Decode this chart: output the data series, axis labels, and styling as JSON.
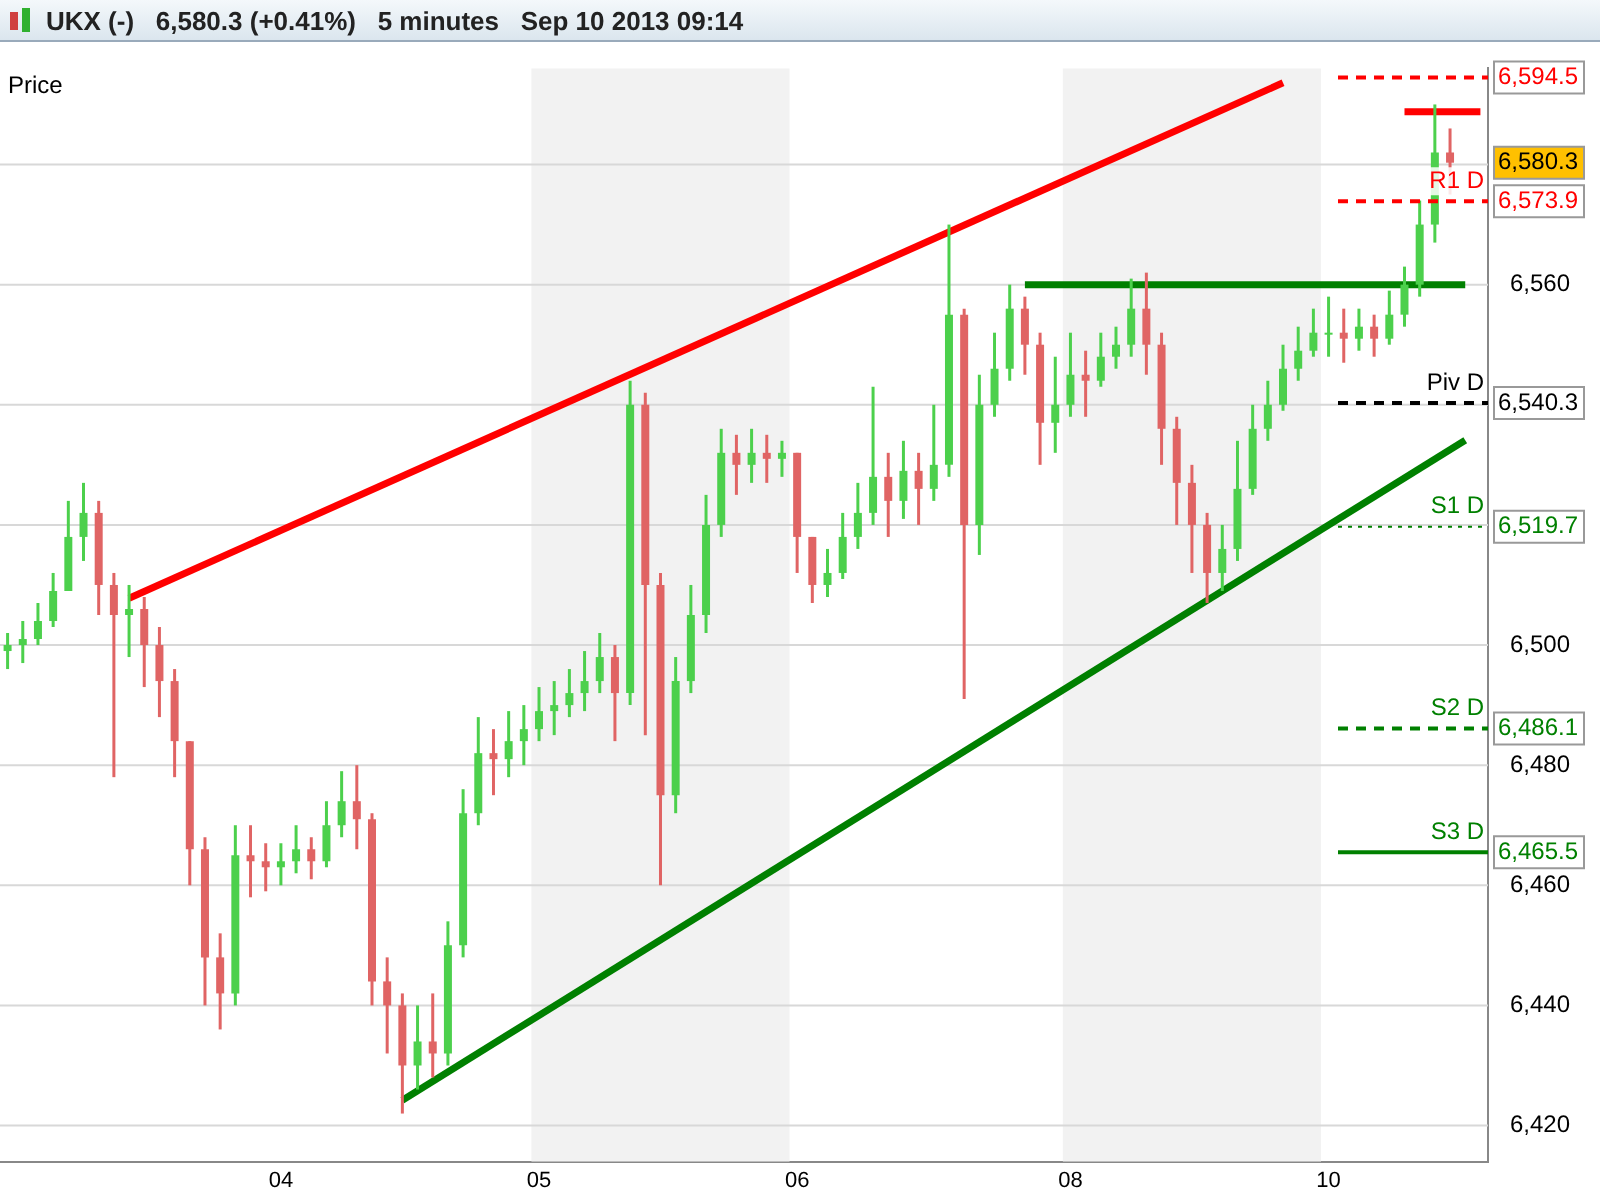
{
  "chart_data": {
    "type": "candlestick",
    "title": "UKX (-)   6,580.3 (+0.41%)   5 minutes   Sep 10 2013 09:14",
    "ylabel": "Price",
    "categories": [
      null,
      null,
      null,
      null,
      null,
      null,
      null,
      null,
      null,
      null,
      null,
      null,
      null,
      null,
      null,
      null,
      null,
      null,
      "04",
      null,
      null,
      null,
      null,
      null,
      null,
      null,
      null,
      null,
      null,
      null,
      null,
      null,
      null,
      null,
      null,
      "05",
      null,
      null,
      null,
      null,
      null,
      null,
      null,
      null,
      null,
      null,
      null,
      null,
      null,
      null,
      null,
      null,
      "06",
      null,
      null,
      null,
      null,
      null,
      null,
      null,
      null,
      null,
      null,
      null,
      null,
      null,
      null,
      null,
      null,
      null,
      "08",
      null,
      null,
      null,
      null,
      null,
      null,
      null,
      null,
      null,
      null,
      null,
      null,
      null,
      null,
      null,
      null,
      "10",
      null,
      null,
      null,
      null,
      null,
      null,
      null,
      null,
      null,
      null
    ],
    "ohlc": [
      [
        6499,
        6502,
        6496,
        6500
      ],
      [
        6500,
        6504,
        6497,
        6501
      ],
      [
        6501,
        6507,
        6500,
        6504
      ],
      [
        6504,
        6512,
        6503,
        6509
      ],
      [
        6509,
        6524,
        6509,
        6518
      ],
      [
        6518,
        6527,
        6514,
        6522
      ],
      [
        6522,
        6524,
        6505,
        6510
      ],
      [
        6510,
        6512,
        6478,
        6505
      ],
      [
        6505,
        6510,
        6498,
        6506
      ],
      [
        6506,
        6508,
        6493,
        6500
      ],
      [
        6500,
        6503,
        6488,
        6494
      ],
      [
        6494,
        6496,
        6478,
        6484
      ],
      [
        6484,
        6484,
        6460,
        6466
      ],
      [
        6466,
        6468,
        6440,
        6448
      ],
      [
        6448,
        6452,
        6436,
        6442
      ],
      [
        6442,
        6470,
        6440,
        6465
      ],
      [
        6465,
        6470,
        6458,
        6464
      ],
      [
        6464,
        6467,
        6459,
        6463
      ],
      [
        6463,
        6467,
        6460,
        6464
      ],
      [
        6464,
        6470,
        6462,
        6466
      ],
      [
        6466,
        6468,
        6461,
        6464
      ],
      [
        6464,
        6474,
        6463,
        6470
      ],
      [
        6470,
        6479,
        6468,
        6474
      ],
      [
        6474,
        6480,
        6466,
        6471
      ],
      [
        6471,
        6472,
        6440,
        6444
      ],
      [
        6444,
        6448,
        6432,
        6440
      ],
      [
        6440,
        6442,
        6422,
        6430
      ],
      [
        6430,
        6440,
        6426,
        6434
      ],
      [
        6434,
        6442,
        6428,
        6432
      ],
      [
        6432,
        6454,
        6430,
        6450
      ],
      [
        6450,
        6476,
        6448,
        6472
      ],
      [
        6472,
        6488,
        6470,
        6482
      ],
      [
        6482,
        6486,
        6475,
        6481
      ],
      [
        6481,
        6489,
        6478,
        6484
      ],
      [
        6484,
        6490,
        6480,
        6486
      ],
      [
        6486,
        6493,
        6484,
        6489
      ],
      [
        6489,
        6494,
        6485,
        6490
      ],
      [
        6490,
        6496,
        6488,
        6492
      ],
      [
        6492,
        6499,
        6489,
        6494
      ],
      [
        6494,
        6502,
        6492,
        6498
      ],
      [
        6498,
        6500,
        6484,
        6492
      ],
      [
        6492,
        6544,
        6490,
        6540
      ],
      [
        6540,
        6542,
        6485,
        6510
      ],
      [
        6510,
        6512,
        6460,
        6475
      ],
      [
        6475,
        6498,
        6472,
        6494
      ],
      [
        6494,
        6510,
        6492,
        6505
      ],
      [
        6505,
        6525,
        6502,
        6520
      ],
      [
        6520,
        6536,
        6518,
        6532
      ],
      [
        6532,
        6535,
        6525,
        6530
      ],
      [
        6530,
        6536,
        6527,
        6532
      ],
      [
        6532,
        6535,
        6527,
        6531
      ],
      [
        6531,
        6534,
        6528,
        6532
      ],
      [
        6532,
        6532,
        6512,
        6518
      ],
      [
        6518,
        6518,
        6507,
        6510
      ],
      [
        6510,
        6516,
        6508,
        6512
      ],
      [
        6512,
        6522,
        6511,
        6518
      ],
      [
        6518,
        6527,
        6516,
        6522
      ],
      [
        6522,
        6543,
        6520,
        6528
      ],
      [
        6528,
        6532,
        6518,
        6524
      ],
      [
        6524,
        6534,
        6521,
        6529
      ],
      [
        6529,
        6532,
        6520,
        6526
      ],
      [
        6526,
        6540,
        6524,
        6530
      ],
      [
        6530,
        6570,
        6528,
        6555
      ],
      [
        6555,
        6556,
        6491,
        6520
      ],
      [
        6520,
        6545,
        6515,
        6540
      ],
      [
        6540,
        6552,
        6538,
        6546
      ],
      [
        6546,
        6560,
        6544,
        6556
      ],
      [
        6556,
        6558,
        6545,
        6550
      ],
      [
        6550,
        6552,
        6530,
        6537
      ],
      [
        6537,
        6548,
        6532,
        6540
      ],
      [
        6540,
        6552,
        6538,
        6545
      ],
      [
        6545,
        6549,
        6538,
        6544
      ],
      [
        6544,
        6552,
        6543,
        6548
      ],
      [
        6548,
        6553,
        6546,
        6550
      ],
      [
        6550,
        6561,
        6548,
        6556
      ],
      [
        6556,
        6562,
        6545,
        6550
      ],
      [
        6550,
        6552,
        6530,
        6536
      ],
      [
        6536,
        6538,
        6520,
        6527
      ],
      [
        6527,
        6530,
        6512,
        6520
      ],
      [
        6520,
        6522,
        6507,
        6512
      ],
      [
        6512,
        6520,
        6509,
        6516
      ],
      [
        6516,
        6534,
        6514,
        6526
      ],
      [
        6526,
        6540,
        6525,
        6536
      ],
      [
        6536,
        6544,
        6534,
        6540
      ],
      [
        6540,
        6550,
        6539,
        6546
      ],
      [
        6546,
        6553,
        6544,
        6549
      ],
      [
        6549,
        6556,
        6548,
        6552
      ],
      [
        6552,
        6558,
        6548,
        6552
      ],
      [
        6552,
        6556,
        6547,
        6551
      ],
      [
        6551,
        6556,
        6549,
        6553
      ],
      [
        6553,
        6555,
        6548,
        6551
      ],
      [
        6551,
        6559,
        6550,
        6555
      ],
      [
        6555,
        6563,
        6553,
        6560
      ],
      [
        6560,
        6574,
        6558,
        6570
      ],
      [
        6570,
        6590,
        6567,
        6582
      ],
      [
        6582,
        6586,
        6575,
        6580.3
      ],
      null,
      null
    ],
    "series": [
      {
        "type": "line",
        "color": "#ff0000",
        "values": [
          null,
          null,
          null,
          null,
          null,
          null,
          null,
          null,
          6507.8,
          null,
          null,
          null,
          null,
          null,
          null,
          null,
          null,
          null,
          null,
          null,
          null,
          null,
          null,
          null,
          null,
          null,
          null,
          null,
          null,
          null,
          null,
          null,
          null,
          null,
          null,
          null,
          null,
          null,
          null,
          null,
          null,
          null,
          null,
          null,
          null,
          null,
          null,
          null,
          null,
          null,
          null,
          null,
          null,
          null,
          null,
          null,
          null,
          null,
          null,
          null,
          null,
          null,
          null,
          null,
          null,
          null,
          null,
          null,
          null,
          null,
          null,
          null,
          null,
          null,
          null,
          null,
          null,
          null,
          null,
          null,
          null,
          null,
          null,
          null,
          6593.6,
          null,
          null,
          null,
          null,
          null,
          null,
          null,
          null,
          null,
          null,
          null,
          null,
          null
        ]
      },
      {
        "type": "line",
        "color": "#008000",
        "values": [
          null,
          null,
          null,
          null,
          null,
          null,
          null,
          null,
          null,
          null,
          null,
          null,
          null,
          null,
          null,
          null,
          null,
          null,
          null,
          null,
          null,
          null,
          null,
          null,
          null,
          null,
          6424.2,
          null,
          null,
          null,
          null,
          null,
          null,
          null,
          null,
          null,
          null,
          null,
          null,
          null,
          null,
          null,
          null,
          null,
          null,
          null,
          null,
          null,
          null,
          null,
          null,
          null,
          null,
          null,
          null,
          null,
          null,
          null,
          null,
          null,
          null,
          null,
          null,
          null,
          null,
          null,
          null,
          null,
          null,
          null,
          null,
          null,
          null,
          null,
          null,
          null,
          null,
          null,
          null,
          null,
          null,
          null,
          null,
          null,
          null,
          null,
          null,
          null,
          null,
          null,
          null,
          null,
          null,
          null,
          null,
          null,
          6534.1,
          null
        ]
      },
      {
        "type": "line",
        "color": "#008000",
        "values": [
          null,
          null,
          null,
          null,
          null,
          null,
          null,
          null,
          null,
          null,
          null,
          null,
          null,
          null,
          null,
          null,
          null,
          null,
          null,
          null,
          null,
          null,
          null,
          null,
          null,
          null,
          null,
          null,
          null,
          null,
          null,
          null,
          null,
          null,
          null,
          null,
          null,
          null,
          null,
          null,
          null,
          null,
          null,
          null,
          null,
          null,
          null,
          null,
          null,
          null,
          null,
          null,
          null,
          null,
          null,
          null,
          null,
          null,
          null,
          null,
          null,
          null,
          null,
          null,
          null,
          null,
          null,
          6560,
          null,
          null,
          null,
          null,
          null,
          null,
          null,
          null,
          null,
          null,
          null,
          null,
          null,
          null,
          null,
          null,
          null,
          null,
          null,
          null,
          null,
          null,
          null,
          null,
          null,
          null,
          null,
          null,
          6560,
          null
        ]
      },
      {
        "type": "line",
        "color": "#ff0000",
        "values": [
          null,
          null,
          null,
          null,
          null,
          null,
          null,
          null,
          null,
          null,
          null,
          null,
          null,
          null,
          null,
          null,
          null,
          null,
          null,
          null,
          null,
          null,
          null,
          null,
          null,
          null,
          null,
          null,
          null,
          null,
          null,
          null,
          null,
          null,
          null,
          null,
          null,
          null,
          null,
          null,
          null,
          null,
          null,
          null,
          null,
          null,
          null,
          null,
          null,
          null,
          null,
          null,
          null,
          null,
          null,
          null,
          null,
          null,
          null,
          null,
          null,
          null,
          null,
          null,
          null,
          null,
          null,
          null,
          null,
          null,
          null,
          null,
          null,
          null,
          null,
          null,
          null,
          null,
          null,
          null,
          null,
          null,
          null,
          null,
          null,
          null,
          null,
          null,
          null,
          null,
          null,
          null,
          6588.8,
          null,
          null,
          null,
          null,
          6588.8
        ]
      }
    ],
    "ylim": [
      6414,
      6596
    ],
    "yticks": [
      {
        "value": 6420,
        "label": "6,420"
      },
      {
        "value": 6440,
        "label": "6,440"
      },
      {
        "value": 6460,
        "label": "6,460"
      },
      {
        "value": 6465.5,
        "label": "6,465.5"
      },
      {
        "value": 6480,
        "label": "6,480"
      },
      {
        "value": 6486.1,
        "label": "6,486.1"
      },
      {
        "value": 6500,
        "label": "6,500"
      },
      {
        "value": 6519.7,
        "label": "6,519.7"
      },
      {
        "value": 6520,
        "label": null
      },
      {
        "value": 6540,
        "label": null
      },
      {
        "value": 6540.3,
        "label": "6,540.3"
      },
      {
        "value": 6560,
        "label": "6,560"
      },
      {
        "value": 6573.9,
        "label": "6,573.9"
      },
      {
        "value": 6580,
        "label": null
      },
      {
        "value": 6580.3,
        "label": "6,580.3"
      },
      {
        "value": 6594.5,
        "label": "6,594.5"
      }
    ],
    "grid": "y",
    "legend": false,
    "bands": [
      {
        "axis": "x",
        "from": "05",
        "to": "06",
        "color": "#f2f2f2"
      },
      {
        "axis": "x",
        "from": "08",
        "to": "10",
        "color": "#f2f2f2"
      }
    ],
    "ref_lines": [
      {
        "axis": "y",
        "value": 6594.5,
        "label": null,
        "color": "#ff0000",
        "line_style": "dashed"
      },
      {
        "axis": "y",
        "value": 6573.9,
        "label": "R1 D",
        "color": "#ff0000",
        "line_style": "dashed"
      },
      {
        "axis": "y",
        "value": 6540.3,
        "label": "Piv D",
        "color": "#000000",
        "line_style": "dashed"
      },
      {
        "axis": "y",
        "value": 6519.7,
        "label": "S1 D",
        "color": "#008000",
        "line_style": "dotted"
      },
      {
        "axis": "y",
        "value": 6486.1,
        "label": "S2 D",
        "color": "#008000",
        "line_style": "dashed"
      },
      {
        "axis": "y",
        "value": 6465.5,
        "label": "S3 D",
        "color": "#008000",
        "line_style": "solid"
      }
    ]
  }
}
